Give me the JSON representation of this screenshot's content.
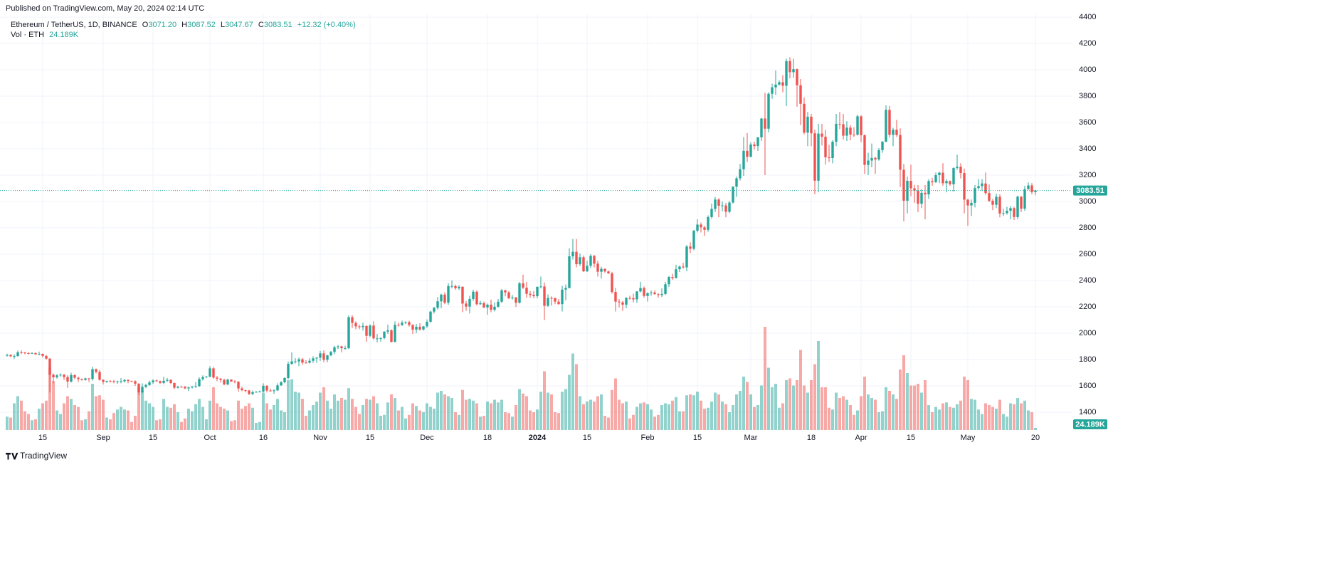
{
  "chart_data": {
    "type": "candlestick",
    "published": "Published on TradingView.com, May 20, 2024 02:14 UTC",
    "footer": "TradingView",
    "legend": {
      "symbol": "Ethereum / TetherUS, 1D, BINANCE",
      "o": "O",
      "open": "3071.20",
      "h": "H",
      "high": "3087.52",
      "l": "L",
      "low": "3047.67",
      "c": "C",
      "close": "3083.51",
      "change": "+12.32 (+0.40%)",
      "vol_name": "Vol · ETH",
      "vol": "24.189K"
    },
    "up_color": "#26a69a",
    "down_color": "#ef5350",
    "up_volume_color": "rgba(38,166,154,0.5)",
    "down_volume_color": "rgba(239,83,80,0.5)",
    "grid": true,
    "ylim": [
      1265,
      4422
    ],
    "yticks": [
      1400,
      1600,
      1800,
      2000,
      2200,
      2400,
      2600,
      2800,
      3000,
      3200,
      3400,
      3600,
      3800,
      4000,
      4200,
      4400
    ],
    "xlim": [
      -2,
      299.2
    ],
    "xticks": [
      {
        "value": 10,
        "label": "15"
      },
      {
        "value": 27,
        "label": "Sep"
      },
      {
        "value": 41,
        "label": "15"
      },
      {
        "value": 57,
        "label": "Oct"
      },
      {
        "value": 72,
        "label": "16"
      },
      {
        "value": 88,
        "label": "Nov"
      },
      {
        "value": 102,
        "label": "15"
      },
      {
        "value": 118,
        "label": "Dec"
      },
      {
        "value": 135,
        "label": "18"
      },
      {
        "value": 149,
        "label": "2024",
        "bold": true
      },
      {
        "value": 163,
        "label": "15"
      },
      {
        "value": 180,
        "label": "Feb"
      },
      {
        "value": 194,
        "label": "15"
      },
      {
        "value": 209,
        "label": "Mar"
      },
      {
        "value": 226,
        "label": "18"
      },
      {
        "value": 240,
        "label": "Apr"
      },
      {
        "value": 254,
        "label": "15"
      },
      {
        "value": 270,
        "label": "May"
      },
      {
        "value": 289,
        "label": "20"
      }
    ],
    "vlim": [
      0,
      1200
    ],
    "open": [
      1830,
      1835,
      1825,
      1827,
      1855,
      1853,
      1849,
      1847,
      1850,
      1840,
      1843,
      1828,
      1807,
      1685,
      1665,
      1680,
      1685,
      1667,
      1633,
      1682,
      1662,
      1652,
      1645,
      1657,
      1652,
      1727,
      1706,
      1646,
      1630,
      1637,
      1636,
      1630,
      1634,
      1635,
      1645,
      1637,
      1635,
      1617,
      1551,
      1593,
      1607,
      1627,
      1641,
      1636,
      1623,
      1639,
      1646,
      1622,
      1586,
      1594,
      1592,
      1581,
      1588,
      1594,
      1598,
      1652,
      1667,
      1670,
      1733,
      1663,
      1655,
      1646,
      1611,
      1648,
      1633,
      1632,
      1581,
      1567,
      1565,
      1539,
      1552,
      1555,
      1557,
      1601,
      1565,
      1564,
      1566,
      1604,
      1628,
      1660,
      1767,
      1786,
      1786,
      1802,
      1777,
      1776,
      1791,
      1809,
      1814,
      1847,
      1798,
      1832,
      1858,
      1893,
      1900,
      1886,
      1886,
      2122,
      2078,
      2052,
      2046,
      2055,
      1980,
      2058,
      1961,
      1961,
      1963,
      2012,
      2022,
      1934,
      2064,
      2062,
      2080,
      2084,
      2062,
      2027,
      2049,
      2028,
      2052,
      2087,
      2164,
      2193,
      2242,
      2293,
      2232,
      2358,
      2358,
      2341,
      2353,
      2225,
      2202,
      2260,
      2315,
      2220,
      2228,
      2196,
      2217,
      2178,
      2201,
      2239,
      2326,
      2310,
      2266,
      2272,
      2231,
      2379,
      2346,
      2299,
      2291,
      2281,
      2352,
      2355,
      2208,
      2268,
      2267,
      2240,
      2221,
      2331,
      2343,
      2584,
      2618,
      2524,
      2577,
      2470,
      2512,
      2587,
      2528,
      2467,
      2489,
      2469,
      2454,
      2313,
      2240,
      2234,
      2217,
      2267,
      2266,
      2257,
      2317,
      2343,
      2283,
      2304,
      2309,
      2296,
      2290,
      2298,
      2372,
      2427,
      2419,
      2486,
      2506,
      2500,
      2658,
      2641,
      2778,
      2825,
      2804,
      2785,
      2882,
      2944,
      3015,
      2968,
      2970,
      2922,
      2992,
      3113,
      3176,
      3245,
      3385,
      3340,
      3433,
      3421,
      3487,
      3630,
      3553,
      3818,
      3867,
      3888,
      3906,
      3879,
      4066,
      3982,
      4005,
      3883,
      3742,
      3523,
      3644,
      3518,
      3158,
      3516,
      3492,
      3336,
      3330,
      3454,
      3590,
      3587,
      3500,
      3561,
      3508,
      3507,
      3647,
      3503,
      3278,
      3311,
      3331,
      3319,
      3390,
      3454,
      3696,
      3506,
      3545,
      3505,
      3241,
      3006,
      3157,
      3100,
      3083,
      2983,
      3066,
      3054,
      3155,
      3147,
      3200,
      3219,
      3139,
      3155,
      3131,
      3254,
      3264,
      3216,
      3014,
      2970,
      2990,
      3102,
      3117,
      3137,
      3064,
      3006,
      2975,
      3036,
      2909,
      2912,
      2930,
      2950,
      2882,
      3037,
      2946,
      3093,
      3122,
      3071.2
    ],
    "high": [
      1845,
      1840,
      1840,
      1868,
      1870,
      1859,
      1857,
      1855,
      1853,
      1860,
      1847,
      1833,
      1810,
      1695,
      1690,
      1695,
      1690,
      1680,
      1700,
      1688,
      1670,
      1655,
      1662,
      1660,
      1745,
      1732,
      1720,
      1650,
      1640,
      1645,
      1645,
      1640,
      1660,
      1652,
      1650,
      1640,
      1642,
      1620,
      1620,
      1615,
      1640,
      1650,
      1648,
      1640,
      1670,
      1660,
      1650,
      1625,
      1600,
      1598,
      1600,
      1595,
      1600,
      1630,
      1665,
      1680,
      1675,
      1750,
      1745,
      1675,
      1660,
      1655,
      1655,
      1650,
      1645,
      1635,
      1595,
      1572,
      1570,
      1565,
      1560,
      1565,
      1620,
      1605,
      1580,
      1575,
      1620,
      1635,
      1665,
      1785,
      1855,
      1810,
      1815,
      1812,
      1795,
      1810,
      1825,
      1820,
      1865,
      1870,
      1835,
      1865,
      1905,
      1910,
      1905,
      1905,
      2135,
      2135,
      2090,
      2065,
      2080,
      2060,
      2068,
      2090,
      1995,
      1970,
      2015,
      2065,
      2030,
      2090,
      2080,
      2095,
      2090,
      2095,
      2070,
      2070,
      2075,
      2055,
      2105,
      2170,
      2200,
      2275,
      2300,
      2310,
      2380,
      2400,
      2370,
      2365,
      2355,
      2245,
      2285,
      2330,
      2325,
      2245,
      2240,
      2225,
      2255,
      2235,
      2260,
      2335,
      2330,
      2320,
      2290,
      2275,
      2390,
      2445,
      2390,
      2320,
      2320,
      2355,
      2430,
      2385,
      2295,
      2280,
      2270,
      2260,
      2360,
      2370,
      2645,
      2715,
      2715,
      2605,
      2590,
      2550,
      2600,
      2595,
      2550,
      2505,
      2492,
      2475,
      2465,
      2345,
      2260,
      2245,
      2275,
      2285,
      2300,
      2320,
      2390,
      2355,
      2310,
      2325,
      2325,
      2305,
      2340,
      2390,
      2435,
      2450,
      2520,
      2515,
      2535,
      2670,
      2690,
      2785,
      2865,
      2840,
      2815,
      2895,
      2985,
      3035,
      3025,
      3000,
      2990,
      3005,
      3115,
      3190,
      3285,
      3490,
      3520,
      3450,
      3455,
      3490,
      3635,
      3825,
      3830,
      3895,
      3995,
      3920,
      3960,
      4085,
      4095,
      4085,
      4010,
      3930,
      3790,
      3680,
      3665,
      3545,
      3590,
      3590,
      3545,
      3430,
      3465,
      3665,
      3680,
      3665,
      3610,
      3580,
      3565,
      3660,
      3655,
      3510,
      3370,
      3440,
      3340,
      3405,
      3460,
      3730,
      3725,
      3560,
      3620,
      3555,
      3285,
      3190,
      3280,
      3125,
      3125,
      3095,
      3125,
      3170,
      3180,
      3220,
      3225,
      3290,
      3170,
      3160,
      3260,
      3355,
      3290,
      3250,
      3020,
      3015,
      3125,
      3170,
      3170,
      3220,
      3130,
      3020,
      3060,
      3055,
      2945,
      2960,
      2965,
      2960,
      3045,
      3040,
      3120,
      3145,
      3140,
      3087.52
    ],
    "low": [
      1822,
      1818,
      1805,
      1822,
      1842,
      1840,
      1840,
      1843,
      1836,
      1832,
      1815,
      1800,
      1550,
      1620,
      1655,
      1670,
      1645,
      1585,
      1625,
      1650,
      1630,
      1640,
      1640,
      1630,
      1640,
      1695,
      1640,
      1610,
      1624,
      1628,
      1620,
      1615,
      1620,
      1625,
      1620,
      1630,
      1600,
      1530,
      1545,
      1583,
      1600,
      1615,
      1630,
      1615,
      1613,
      1630,
      1613,
      1575,
      1580,
      1585,
      1575,
      1560,
      1580,
      1585,
      1592,
      1640,
      1660,
      1665,
      1655,
      1635,
      1625,
      1605,
      1605,
      1630,
      1620,
      1555,
      1560,
      1550,
      1530,
      1530,
      1548,
      1550,
      1550,
      1550,
      1555,
      1540,
      1560,
      1600,
      1620,
      1650,
      1760,
      1770,
      1750,
      1760,
      1770,
      1770,
      1775,
      1775,
      1790,
      1780,
      1780,
      1825,
      1840,
      1880,
      1855,
      1875,
      1880,
      2040,
      2030,
      2030,
      2020,
      1935,
      1970,
      1950,
      1930,
      1935,
      1955,
      1995,
      1930,
      1930,
      2050,
      2055,
      2070,
      2050,
      1995,
      2000,
      2020,
      2020,
      2040,
      2080,
      2150,
      2180,
      2190,
      2220,
      2215,
      2340,
      2330,
      2330,
      2160,
      2170,
      2150,
      2245,
      2210,
      2215,
      2190,
      2140,
      2160,
      2165,
      2195,
      2230,
      2280,
      2260,
      2255,
      2200,
      2225,
      2335,
      2270,
      2270,
      2265,
      2265,
      2340,
      2100,
      2200,
      2210,
      2220,
      2215,
      2165,
      2250,
      2340,
      2560,
      2500,
      2510,
      2465,
      2465,
      2495,
      2500,
      2430,
      2415,
      2460,
      2450,
      2300,
      2165,
      2195,
      2170,
      2190,
      2255,
      2235,
      2230,
      2310,
      2270,
      2240,
      2285,
      2295,
      2270,
      2275,
      2290,
      2350,
      2405,
      2415,
      2465,
      2490,
      2470,
      2610,
      2630,
      2765,
      2765,
      2740,
      2770,
      2870,
      2920,
      2880,
      2925,
      2880,
      2910,
      2985,
      3035,
      3160,
      3195,
      3300,
      3335,
      3395,
      3385,
      3460,
      3200,
      3525,
      3780,
      3810,
      3880,
      3830,
      3725,
      3935,
      3940,
      3720,
      3580,
      3510,
      3420,
      3420,
      3055,
      3070,
      3425,
      3280,
      3300,
      3290,
      3420,
      3550,
      3470,
      3460,
      3465,
      3490,
      3500,
      3450,
      3210,
      3200,
      3260,
      3210,
      3310,
      3370,
      3450,
      3485,
      3420,
      3490,
      3110,
      2850,
      2910,
      3040,
      2990,
      2920,
      2950,
      2865,
      3020,
      3120,
      3140,
      3140,
      3120,
      3070,
      3120,
      3075,
      3240,
      3175,
      2910,
      2815,
      2890,
      2955,
      3090,
      3080,
      3050,
      2995,
      2935,
      2950,
      2880,
      2890,
      2900,
      2865,
      2860,
      2865,
      2920,
      2930,
      3090,
      3055,
      3047.67
    ],
    "close": [
      1835,
      1825,
      1827,
      1855,
      1853,
      1849,
      1847,
      1850,
      1840,
      1843,
      1828,
      1807,
      1685,
      1665,
      1680,
      1685,
      1667,
      1633,
      1682,
      1662,
      1652,
      1645,
      1657,
      1652,
      1727,
      1706,
      1646,
      1630,
      1637,
      1636,
      1630,
      1634,
      1635,
      1645,
      1637,
      1635,
      1617,
      1551,
      1593,
      1607,
      1627,
      1641,
      1636,
      1623,
      1639,
      1646,
      1622,
      1586,
      1594,
      1592,
      1581,
      1588,
      1594,
      1598,
      1652,
      1667,
      1670,
      1733,
      1663,
      1655,
      1646,
      1611,
      1648,
      1633,
      1632,
      1581,
      1567,
      1565,
      1539,
      1552,
      1555,
      1557,
      1601,
      1565,
      1564,
      1566,
      1604,
      1628,
      1660,
      1767,
      1786,
      1786,
      1802,
      1777,
      1776,
      1791,
      1809,
      1814,
      1847,
      1798,
      1832,
      1858,
      1893,
      1900,
      1886,
      1886,
      2122,
      2078,
      2052,
      2046,
      2055,
      1980,
      2058,
      1961,
      1961,
      1963,
      2012,
      2022,
      1934,
      2064,
      2062,
      2080,
      2084,
      2062,
      2027,
      2049,
      2028,
      2052,
      2087,
      2164,
      2193,
      2242,
      2293,
      2232,
      2358,
      2358,
      2341,
      2353,
      2225,
      2202,
      2260,
      2315,
      2220,
      2228,
      2196,
      2217,
      2178,
      2201,
      2239,
      2326,
      2310,
      2266,
      2272,
      2231,
      2379,
      2346,
      2299,
      2291,
      2281,
      2352,
      2355,
      2208,
      2268,
      2267,
      2240,
      2221,
      2331,
      2343,
      2584,
      2618,
      2524,
      2577,
      2470,
      2512,
      2587,
      2528,
      2467,
      2489,
      2469,
      2454,
      2313,
      2240,
      2234,
      2217,
      2267,
      2266,
      2257,
      2317,
      2343,
      2283,
      2304,
      2309,
      2296,
      2290,
      2298,
      2372,
      2427,
      2419,
      2486,
      2506,
      2500,
      2658,
      2641,
      2778,
      2825,
      2804,
      2785,
      2882,
      2944,
      3015,
      2968,
      2970,
      2922,
      2992,
      3113,
      3176,
      3245,
      3385,
      3340,
      3433,
      3421,
      3487,
      3630,
      3553,
      3818,
      3867,
      3888,
      3906,
      3879,
      4066,
      3982,
      4005,
      3883,
      3742,
      3523,
      3644,
      3518,
      3158,
      3516,
      3492,
      3336,
      3330,
      3454,
      3590,
      3587,
      3500,
      3561,
      3508,
      3507,
      3647,
      3503,
      3278,
      3311,
      3331,
      3319,
      3390,
      3454,
      3696,
      3506,
      3545,
      3505,
      3241,
      3006,
      3157,
      3100,
      3083,
      2983,
      3066,
      3054,
      3155,
      3147,
      3200,
      3219,
      3139,
      3155,
      3131,
      3254,
      3264,
      3216,
      3014,
      2970,
      2990,
      3102,
      3117,
      3137,
      3064,
      3006,
      2975,
      3036,
      2909,
      2912,
      2930,
      2950,
      2882,
      3037,
      2946,
      3093,
      3122,
      3071.2,
      3083.51
    ],
    "volume": [
      150,
      140,
      300,
      380,
      330,
      210,
      180,
      110,
      120,
      240,
      300,
      330,
      700,
      550,
      220,
      180,
      300,
      380,
      350,
      280,
      260,
      110,
      120,
      210,
      520,
      380,
      390,
      340,
      140,
      120,
      190,
      230,
      260,
      230,
      220,
      90,
      160,
      480,
      440,
      330,
      300,
      260,
      110,
      120,
      350,
      260,
      250,
      290,
      200,
      90,
      130,
      240,
      210,
      290,
      350,
      260,
      120,
      330,
      480,
      300,
      260,
      240,
      220,
      100,
      110,
      330,
      240,
      270,
      300,
      250,
      80,
      90,
      420,
      300,
      230,
      280,
      350,
      220,
      200,
      560,
      570,
      430,
      420,
      350,
      160,
      220,
      280,
      320,
      420,
      480,
      330,
      240,
      400,
      330,
      360,
      340,
      470,
      350,
      260,
      180,
      280,
      350,
      340,
      380,
      300,
      160,
      170,
      310,
      400,
      360,
      220,
      260,
      130,
      170,
      300,
      270,
      220,
      200,
      300,
      260,
      240,
      420,
      440,
      400,
      380,
      360,
      200,
      170,
      450,
      340,
      350,
      330,
      300,
      150,
      160,
      320,
      300,
      340,
      310,
      340,
      200,
      190,
      150,
      280,
      460,
      410,
      380,
      220,
      200,
      230,
      430,
      660,
      420,
      400,
      200,
      190,
      430,
      460,
      620,
      860,
      740,
      380,
      290,
      320,
      340,
      320,
      380,
      400,
      160,
      140,
      450,
      580,
      340,
      300,
      320,
      130,
      170,
      260,
      300,
      310,
      290,
      230,
      150,
      170,
      280,
      300,
      290,
      330,
      370,
      210,
      210,
      390,
      400,
      390,
      430,
      330,
      240,
      250,
      320,
      420,
      400,
      320,
      290,
      200,
      280,
      400,
      440,
      600,
      540,
      400,
      260,
      280,
      500,
      1160,
      700,
      480,
      520,
      250,
      300,
      560,
      580,
      500,
      560,
      900,
      500,
      420,
      560,
      740,
      1000,
      480,
      480,
      250,
      230,
      420,
      360,
      380,
      340,
      280,
      170,
      220,
      380,
      600,
      400,
      360,
      340,
      200,
      210,
      480,
      440,
      400,
      350,
      680,
      840,
      640,
      500,
      500,
      520,
      420,
      560,
      280,
      200,
      260,
      230,
      300,
      310,
      260,
      250,
      290,
      330,
      600,
      560,
      350,
      340,
      230,
      180,
      300,
      280,
      260,
      240,
      340,
      180,
      150,
      300,
      290,
      360,
      300,
      330,
      220,
      200,
      24.189
    ]
  }
}
